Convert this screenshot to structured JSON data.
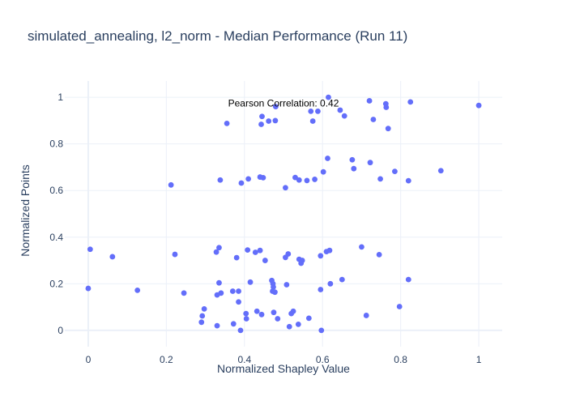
{
  "chart_data": {
    "type": "scatter",
    "title": "simulated_annealing, l2_norm - Median Performance (Run 11)",
    "xlabel": "Normalized Shapley Value",
    "ylabel": "Normalized Points",
    "xlim": [
      -0.06,
      1.06
    ],
    "ylim": [
      -0.07,
      1.07
    ],
    "xticks": [
      0,
      0.2,
      0.4,
      0.6,
      0.8,
      1
    ],
    "xtick_labels": [
      "0",
      "0.2",
      "0.4",
      "0.6",
      "0.8",
      "1"
    ],
    "yticks": [
      0,
      0.2,
      0.4,
      0.6,
      0.8,
      1
    ],
    "ytick_labels": [
      "0",
      "0.2",
      "0.4",
      "0.6",
      "0.8",
      "1"
    ],
    "grid": true,
    "marker_color": "#636efa",
    "annotation": {
      "text": "Pearson Correlation: 0.42",
      "x": 0.5,
      "y": 0.975
    },
    "points": [
      {
        "x": 0.615,
        "y": 1.0
      },
      {
        "x": 0.72,
        "y": 0.985
      },
      {
        "x": 0.825,
        "y": 0.98
      },
      {
        "x": 0.762,
        "y": 0.972
      },
      {
        "x": 1.0,
        "y": 0.965
      },
      {
        "x": 0.48,
        "y": 0.96
      },
      {
        "x": 0.763,
        "y": 0.957
      },
      {
        "x": 0.57,
        "y": 0.94
      },
      {
        "x": 0.588,
        "y": 0.94
      },
      {
        "x": 0.645,
        "y": 0.945
      },
      {
        "x": 0.656,
        "y": 0.92
      },
      {
        "x": 0.445,
        "y": 0.918
      },
      {
        "x": 0.73,
        "y": 0.905
      },
      {
        "x": 0.462,
        "y": 0.898
      },
      {
        "x": 0.479,
        "y": 0.9
      },
      {
        "x": 0.575,
        "y": 0.898
      },
      {
        "x": 0.355,
        "y": 0.888
      },
      {
        "x": 0.443,
        "y": 0.884
      },
      {
        "x": 0.768,
        "y": 0.866
      },
      {
        "x": 0.613,
        "y": 0.738
      },
      {
        "x": 0.676,
        "y": 0.732
      },
      {
        "x": 0.722,
        "y": 0.72
      },
      {
        "x": 0.68,
        "y": 0.694
      },
      {
        "x": 0.903,
        "y": 0.685
      },
      {
        "x": 0.785,
        "y": 0.682
      },
      {
        "x": 0.602,
        "y": 0.68
      },
      {
        "x": 0.44,
        "y": 0.658
      },
      {
        "x": 0.448,
        "y": 0.655
      },
      {
        "x": 0.53,
        "y": 0.656
      },
      {
        "x": 0.41,
        "y": 0.65
      },
      {
        "x": 0.748,
        "y": 0.65
      },
      {
        "x": 0.54,
        "y": 0.645
      },
      {
        "x": 0.56,
        "y": 0.643
      },
      {
        "x": 0.58,
        "y": 0.648
      },
      {
        "x": 0.338,
        "y": 0.645
      },
      {
        "x": 0.82,
        "y": 0.642
      },
      {
        "x": 0.392,
        "y": 0.632
      },
      {
        "x": 0.212,
        "y": 0.624
      },
      {
        "x": 0.505,
        "y": 0.612
      },
      {
        "x": 0.7,
        "y": 0.358
      },
      {
        "x": 0.335,
        "y": 0.355
      },
      {
        "x": 0.005,
        "y": 0.348
      },
      {
        "x": 0.408,
        "y": 0.345
      },
      {
        "x": 0.44,
        "y": 0.343
      },
      {
        "x": 0.618,
        "y": 0.343
      },
      {
        "x": 0.61,
        "y": 0.338
      },
      {
        "x": 0.328,
        "y": 0.336
      },
      {
        "x": 0.428,
        "y": 0.335
      },
      {
        "x": 0.222,
        "y": 0.326
      },
      {
        "x": 0.512,
        "y": 0.328
      },
      {
        "x": 0.745,
        "y": 0.325
      },
      {
        "x": 0.595,
        "y": 0.32
      },
      {
        "x": 0.062,
        "y": 0.316
      },
      {
        "x": 0.505,
        "y": 0.313
      },
      {
        "x": 0.38,
        "y": 0.312
      },
      {
        "x": 0.54,
        "y": 0.305
      },
      {
        "x": 0.453,
        "y": 0.3
      },
      {
        "x": 0.548,
        "y": 0.3
      },
      {
        "x": 0.545,
        "y": 0.288
      },
      {
        "x": 0.82,
        "y": 0.218
      },
      {
        "x": 0.65,
        "y": 0.218
      },
      {
        "x": 0.47,
        "y": 0.214
      },
      {
        "x": 0.473,
        "y": 0.2
      },
      {
        "x": 0.415,
        "y": 0.207
      },
      {
        "x": 0.335,
        "y": 0.204
      },
      {
        "x": 0.62,
        "y": 0.2
      },
      {
        "x": 0.508,
        "y": 0.196
      },
      {
        "x": 0.474,
        "y": 0.186
      },
      {
        "x": 0.0,
        "y": 0.18
      },
      {
        "x": 0.595,
        "y": 0.175
      },
      {
        "x": 0.126,
        "y": 0.172
      },
      {
        "x": 0.37,
        "y": 0.168
      },
      {
        "x": 0.385,
        "y": 0.168
      },
      {
        "x": 0.472,
        "y": 0.168
      },
      {
        "x": 0.478,
        "y": 0.164
      },
      {
        "x": 0.245,
        "y": 0.16
      },
      {
        "x": 0.34,
        "y": 0.16
      },
      {
        "x": 0.33,
        "y": 0.152
      },
      {
        "x": 0.385,
        "y": 0.122
      },
      {
        "x": 0.797,
        "y": 0.102
      },
      {
        "x": 0.297,
        "y": 0.092
      },
      {
        "x": 0.432,
        "y": 0.082
      },
      {
        "x": 0.525,
        "y": 0.082
      },
      {
        "x": 0.475,
        "y": 0.077
      },
      {
        "x": 0.404,
        "y": 0.072
      },
      {
        "x": 0.444,
        "y": 0.068
      },
      {
        "x": 0.52,
        "y": 0.072
      },
      {
        "x": 0.712,
        "y": 0.064
      },
      {
        "x": 0.292,
        "y": 0.062
      },
      {
        "x": 0.565,
        "y": 0.052
      },
      {
        "x": 0.485,
        "y": 0.05
      },
      {
        "x": 0.405,
        "y": 0.05
      },
      {
        "x": 0.29,
        "y": 0.035
      },
      {
        "x": 0.372,
        "y": 0.028
      },
      {
        "x": 0.538,
        "y": 0.026
      },
      {
        "x": 0.33,
        "y": 0.02
      },
      {
        "x": 0.515,
        "y": 0.016
      },
      {
        "x": 0.39,
        "y": 0.0
      },
      {
        "x": 0.597,
        "y": 0.0
      }
    ]
  }
}
